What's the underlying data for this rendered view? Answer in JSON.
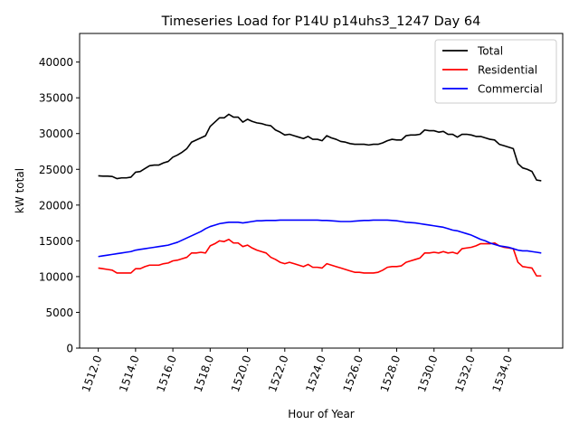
{
  "chart_data": {
    "type": "line",
    "title": "Timeseries Load for P14U p14uhs3_1247  Day 64",
    "xlabel": "Hour of Year",
    "ylabel": "kW total",
    "xlim": [
      1511.0,
      1536.9
    ],
    "ylim": [
      0,
      44000
    ],
    "grid": false,
    "legend_position": "top-right",
    "x_ticks": [
      1512,
      1514,
      1516,
      1518,
      1520,
      1522,
      1524,
      1526,
      1528,
      1530,
      1532,
      1534
    ],
    "x_tick_labels": [
      "1512.0",
      "1514.0",
      "1516.0",
      "1518.0",
      "1520.0",
      "1522.0",
      "1524.0",
      "1526.0",
      "1528.0",
      "1530.0",
      "1532.0",
      "1534.0"
    ],
    "y_ticks": [
      0,
      5000,
      10000,
      15000,
      20000,
      25000,
      30000,
      35000,
      40000
    ],
    "y_tick_labels": [
      "0",
      "5000",
      "10000",
      "15000",
      "20000",
      "25000",
      "30000",
      "35000",
      "40000"
    ],
    "x_start": 1512.0,
    "x_step": 0.25,
    "series": [
      {
        "name": "Total",
        "color": "#000000",
        "values": [
          24100,
          24050,
          24050,
          24000,
          23700,
          23800,
          23800,
          23900,
          24600,
          24700,
          25100,
          25500,
          25600,
          25600,
          25900,
          26100,
          26700,
          27000,
          27400,
          27900,
          28800,
          29100,
          29400,
          29700,
          31000,
          31600,
          32200,
          32200,
          32700,
          32300,
          32300,
          31600,
          32000,
          31700,
          31500,
          31400,
          31200,
          31100,
          30500,
          30200,
          29800,
          29900,
          29700,
          29500,
          29300,
          29600,
          29200,
          29200,
          29000,
          29700,
          29400,
          29200,
          28900,
          28800,
          28600,
          28500,
          28500,
          28500,
          28400,
          28500,
          28500,
          28700,
          29000,
          29200,
          29100,
          29100,
          29700,
          29800,
          29800,
          29900,
          30500,
          30400,
          30400,
          30200,
          30300,
          29900,
          29900,
          29500,
          29900,
          29900,
          29800,
          29600,
          29600,
          29400,
          29200,
          29100,
          28500,
          28300,
          28100,
          27900,
          25800,
          25200,
          25000,
          24700,
          23500,
          23400
        ]
      },
      {
        "name": "Residential",
        "color": "#ff0000",
        "values": [
          11200,
          11100,
          11000,
          10900,
          10500,
          10500,
          10500,
          10500,
          11100,
          11100,
          11400,
          11600,
          11600,
          11600,
          11800,
          11900,
          12200,
          12300,
          12500,
          12700,
          13300,
          13300,
          13400,
          13300,
          14300,
          14600,
          15000,
          14900,
          15200,
          14700,
          14700,
          14200,
          14400,
          14000,
          13700,
          13500,
          13300,
          12700,
          12400,
          12000,
          11800,
          12000,
          11800,
          11600,
          11400,
          11700,
          11300,
          11300,
          11200,
          11800,
          11600,
          11400,
          11200,
          11000,
          10800,
          10600,
          10600,
          10500,
          10500,
          10500,
          10600,
          10900,
          11300,
          11400,
          11400,
          11500,
          12000,
          12200,
          12400,
          12600,
          13300,
          13300,
          13400,
          13300,
          13500,
          13300,
          13400,
          13200,
          13900,
          14000,
          14100,
          14300,
          14600,
          14600,
          14600,
          14700,
          14300,
          14100,
          14000,
          13900,
          12000,
          11400,
          11300,
          11200,
          10100,
          10100
        ]
      },
      {
        "name": "Commercial",
        "color": "#0000ff",
        "values": [
          12800,
          12900,
          13000,
          13100,
          13200,
          13300,
          13400,
          13500,
          13700,
          13800,
          13900,
          14000,
          14100,
          14200,
          14300,
          14400,
          14600,
          14800,
          15100,
          15400,
          15700,
          16000,
          16300,
          16700,
          17000,
          17200,
          17400,
          17500,
          17600,
          17600,
          17600,
          17500,
          17600,
          17700,
          17800,
          17800,
          17850,
          17850,
          17850,
          17900,
          17900,
          17900,
          17900,
          17900,
          17900,
          17900,
          17900,
          17900,
          17850,
          17850,
          17800,
          17750,
          17700,
          17700,
          17700,
          17750,
          17800,
          17850,
          17850,
          17900,
          17900,
          17900,
          17900,
          17850,
          17800,
          17700,
          17600,
          17550,
          17500,
          17400,
          17300,
          17200,
          17100,
          17000,
          16900,
          16700,
          16500,
          16400,
          16200,
          16000,
          15800,
          15500,
          15200,
          15000,
          14700,
          14500,
          14300,
          14200,
          14100,
          13900,
          13700,
          13600,
          13600,
          13500,
          13400,
          13300
        ]
      }
    ]
  }
}
